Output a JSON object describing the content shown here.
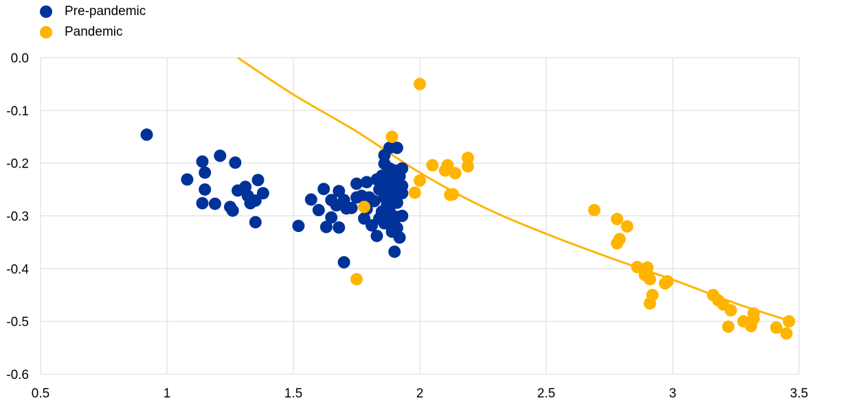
{
  "legend": {
    "items": [
      {
        "label": "Pre-pandemic",
        "color": "#003299"
      },
      {
        "label": "Pandemic",
        "color": "#FFB400"
      }
    ]
  },
  "chart_data": {
    "type": "scatter",
    "title": "",
    "xlabel": "",
    "ylabel": "",
    "xlim": [
      0.5,
      3.5
    ],
    "ylim": [
      -0.6,
      0.0
    ],
    "x_ticks": [
      0.5,
      1,
      1.5,
      2,
      2.5,
      3,
      3.5
    ],
    "x_tick_labels": [
      "0.5",
      "1",
      "1.5",
      "2",
      "2.5",
      "3",
      "3.5"
    ],
    "y_ticks": [
      0.0,
      -0.1,
      -0.2,
      -0.3,
      -0.4,
      -0.5,
      -0.6
    ],
    "y_tick_labels": [
      "0.0",
      "-0.1",
      "-0.2",
      "-0.3",
      "-0.4",
      "-0.5",
      "-0.6"
    ],
    "grid": true,
    "legend_position": "top-left",
    "series": [
      {
        "name": "Pre-pandemic",
        "color": "#003299",
        "points": [
          [
            0.92,
            -0.146
          ],
          [
            1.08,
            -0.231
          ],
          [
            1.14,
            -0.197
          ],
          [
            1.15,
            -0.218
          ],
          [
            1.15,
            -0.25
          ],
          [
            1.14,
            -0.276
          ],
          [
            1.19,
            -0.277
          ],
          [
            1.21,
            -0.186
          ],
          [
            1.27,
            -0.199
          ],
          [
            1.26,
            -0.29
          ],
          [
            1.25,
            -0.283
          ],
          [
            1.28,
            -0.252
          ],
          [
            1.31,
            -0.245
          ],
          [
            1.32,
            -0.262
          ],
          [
            1.33,
            -0.276
          ],
          [
            1.35,
            -0.271
          ],
          [
            1.36,
            -0.232
          ],
          [
            1.38,
            -0.257
          ],
          [
            1.35,
            -0.312
          ],
          [
            1.52,
            -0.319
          ],
          [
            1.57,
            -0.269
          ],
          [
            1.6,
            -0.289
          ],
          [
            1.62,
            -0.249
          ],
          [
            1.63,
            -0.321
          ],
          [
            1.65,
            -0.303
          ],
          [
            1.65,
            -0.27
          ],
          [
            1.67,
            -0.28
          ],
          [
            1.68,
            -0.253
          ],
          [
            1.69,
            -0.278
          ],
          [
            1.7,
            -0.27
          ],
          [
            1.68,
            -0.322
          ],
          [
            1.71,
            -0.286
          ],
          [
            1.73,
            -0.285
          ],
          [
            1.7,
            -0.388
          ],
          [
            1.75,
            -0.265
          ],
          [
            1.75,
            -0.239
          ],
          [
            1.77,
            -0.262
          ],
          [
            1.78,
            -0.305
          ],
          [
            1.79,
            -0.236
          ],
          [
            1.79,
            -0.287
          ],
          [
            1.8,
            -0.265
          ],
          [
            1.81,
            -0.318
          ],
          [
            1.82,
            -0.272
          ],
          [
            1.83,
            -0.338
          ],
          [
            1.83,
            -0.231
          ],
          [
            1.84,
            -0.25
          ],
          [
            1.84,
            -0.305
          ],
          [
            1.85,
            -0.292
          ],
          [
            1.85,
            -0.25
          ],
          [
            1.85,
            -0.224
          ],
          [
            1.86,
            -0.185
          ],
          [
            1.86,
            -0.201
          ],
          [
            1.86,
            -0.265
          ],
          [
            1.86,
            -0.314
          ],
          [
            1.87,
            -0.222
          ],
          [
            1.87,
            -0.241
          ],
          [
            1.87,
            -0.28
          ],
          [
            1.87,
            -0.3
          ],
          [
            1.88,
            -0.171
          ],
          [
            1.88,
            -0.21
          ],
          [
            1.88,
            -0.232
          ],
          [
            1.88,
            -0.29
          ],
          [
            1.89,
            -0.25
          ],
          [
            1.89,
            -0.33
          ],
          [
            1.89,
            -0.31
          ],
          [
            1.9,
            -0.214
          ],
          [
            1.9,
            -0.262
          ],
          [
            1.9,
            -0.368
          ],
          [
            1.9,
            -0.241
          ],
          [
            1.91,
            -0.171
          ],
          [
            1.91,
            -0.275
          ],
          [
            1.91,
            -0.302
          ],
          [
            1.91,
            -0.323
          ],
          [
            1.92,
            -0.341
          ],
          [
            1.92,
            -0.225
          ],
          [
            1.93,
            -0.21
          ],
          [
            1.93,
            -0.243
          ],
          [
            1.93,
            -0.3
          ],
          [
            1.93,
            -0.257
          ]
        ]
      },
      {
        "name": "Pandemic",
        "color": "#FFB400",
        "points": [
          [
            1.75,
            -0.42
          ],
          [
            1.78,
            -0.283
          ],
          [
            1.89,
            -0.15
          ],
          [
            1.98,
            -0.256
          ],
          [
            2.0,
            -0.05
          ],
          [
            2.0,
            -0.233
          ],
          [
            2.05,
            -0.204
          ],
          [
            2.1,
            -0.214
          ],
          [
            2.11,
            -0.204
          ],
          [
            2.12,
            -0.26
          ],
          [
            2.13,
            -0.259
          ],
          [
            2.14,
            -0.219
          ],
          [
            2.19,
            -0.19
          ],
          [
            2.19,
            -0.206
          ],
          [
            2.69,
            -0.289
          ],
          [
            2.78,
            -0.306
          ],
          [
            2.78,
            -0.352
          ],
          [
            2.79,
            -0.344
          ],
          [
            2.82,
            -0.32
          ],
          [
            2.86,
            -0.397
          ],
          [
            2.89,
            -0.412
          ],
          [
            2.9,
            -0.398
          ],
          [
            2.9,
            -0.41
          ],
          [
            2.91,
            -0.42
          ],
          [
            2.91,
            -0.466
          ],
          [
            2.92,
            -0.45
          ],
          [
            2.97,
            -0.428
          ],
          [
            2.98,
            -0.424
          ],
          [
            3.16,
            -0.45
          ],
          [
            3.18,
            -0.46
          ],
          [
            3.2,
            -0.468
          ],
          [
            3.22,
            -0.51
          ],
          [
            3.23,
            -0.479
          ],
          [
            3.28,
            -0.5
          ],
          [
            3.31,
            -0.509
          ],
          [
            3.32,
            -0.485
          ],
          [
            3.32,
            -0.495
          ],
          [
            3.41,
            -0.512
          ],
          [
            3.45,
            -0.523
          ],
          [
            3.46,
            -0.5
          ]
        ]
      }
    ],
    "fit_line": {
      "series": "Pandemic",
      "color": "#FFB400",
      "points": [
        [
          1.28,
          0.0
        ],
        [
          1.5,
          -0.07
        ],
        [
          1.75,
          -0.14
        ],
        [
          2.0,
          -0.218
        ],
        [
          2.25,
          -0.283
        ],
        [
          2.5,
          -0.334
        ],
        [
          2.75,
          -0.379
        ],
        [
          3.0,
          -0.421
        ],
        [
          3.25,
          -0.466
        ],
        [
          3.45,
          -0.497
        ]
      ]
    }
  }
}
